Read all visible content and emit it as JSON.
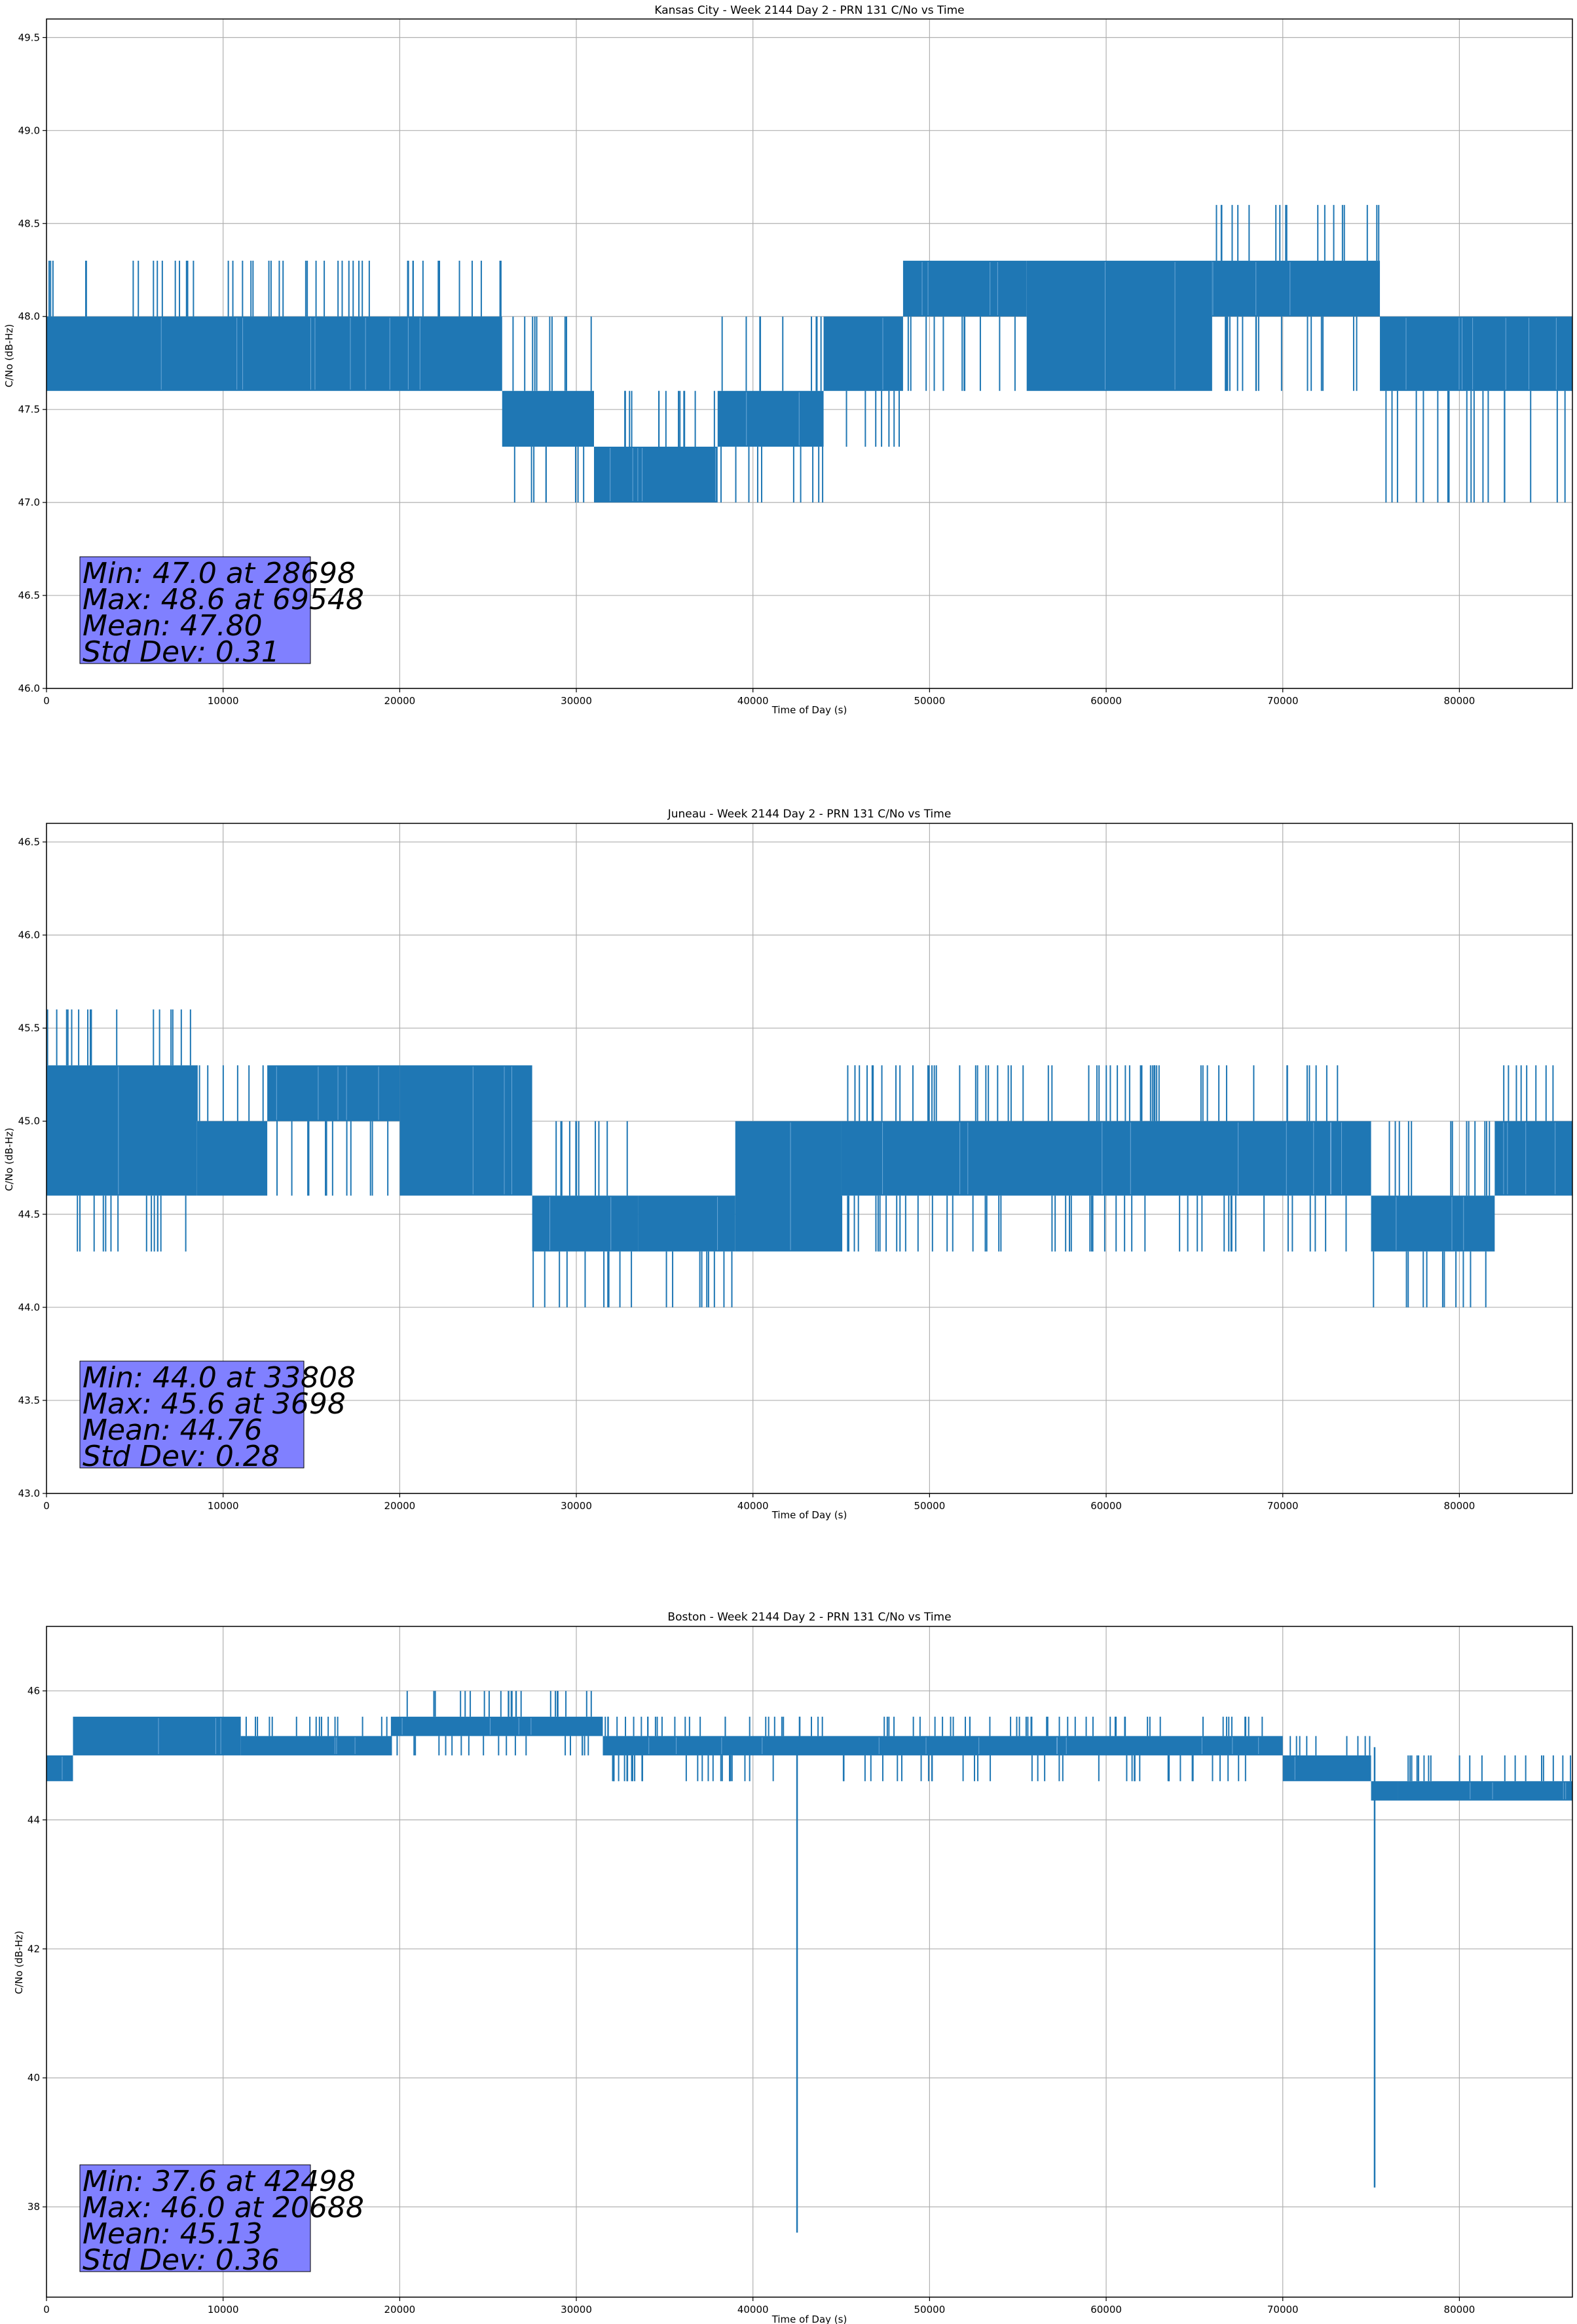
{
  "colors": {
    "line": "#1f77b4",
    "grid": "#b0b0b0",
    "stats_box": "#8080ff",
    "axes": "#000000"
  },
  "chart_data": [
    {
      "type": "line",
      "title": "Kansas City - Week 2144 Day 2 - PRN 131 C/No vs Time",
      "xlabel": "Time of Day (s)",
      "ylabel": "C/No (dB-Hz)",
      "xlim": [
        0,
        86400
      ],
      "ylim": [
        46.0,
        49.6
      ],
      "xticks": [
        0,
        10000,
        20000,
        30000,
        40000,
        50000,
        60000,
        70000,
        80000
      ],
      "yticks": [
        46.0,
        46.5,
        47.0,
        47.5,
        48.0,
        48.5,
        49.0,
        49.5
      ],
      "ytick_decimals": 1,
      "grid": true,
      "series": [
        {
          "name": "C/No",
          "segments": [
            {
              "x": [
                0,
                25800
              ],
              "band": [
                47.6,
                48.0
              ],
              "spikes_high": 48.3,
              "spikes_low": 47.6
            },
            {
              "x": [
                25800,
                31000
              ],
              "band": [
                47.3,
                47.6
              ],
              "spikes_high": 48.0,
              "spikes_low": 47.0
            },
            {
              "x": [
                31000,
                38000
              ],
              "band": [
                47.0,
                47.3
              ],
              "spikes_high": 47.6,
              "spikes_low": 47.0
            },
            {
              "x": [
                38000,
                44000
              ],
              "band": [
                47.3,
                47.6
              ],
              "spikes_high": 48.0,
              "spikes_low": 47.0
            },
            {
              "x": [
                44000,
                48500
              ],
              "band": [
                47.6,
                48.0
              ],
              "spikes_high": 48.0,
              "spikes_low": 47.3
            },
            {
              "x": [
                48500,
                55500
              ],
              "band": [
                48.0,
                48.3
              ],
              "spikes_high": 48.3,
              "spikes_low": 47.6
            },
            {
              "x": [
                55500,
                66000
              ],
              "band": [
                47.6,
                48.3
              ],
              "spikes_high": 48.3,
              "spikes_low": 47.6
            },
            {
              "x": [
                66000,
                75500
              ],
              "band": [
                48.0,
                48.3
              ],
              "spikes_high": 48.6,
              "spikes_low": 47.6
            },
            {
              "x": [
                75500,
                86400
              ],
              "band": [
                47.6,
                48.0
              ],
              "spikes_high": 48.0,
              "spikes_low": 47.0
            }
          ]
        }
      ],
      "stats": [
        "Min: 47.0 at 28698",
        "Max: 48.6 at 69548",
        "Mean: 47.80",
        "Std Dev: 0.31"
      ]
    },
    {
      "type": "line",
      "title": "Juneau - Week 2144 Day 2 - PRN 131 C/No vs Time",
      "xlabel": "Time of Day (s)",
      "ylabel": "C/No (dB-Hz)",
      "xlim": [
        0,
        86400
      ],
      "ylim": [
        43.0,
        46.6
      ],
      "xticks": [
        0,
        10000,
        20000,
        30000,
        40000,
        50000,
        60000,
        70000,
        80000
      ],
      "yticks": [
        43.0,
        43.5,
        44.0,
        44.5,
        45.0,
        45.5,
        46.0,
        46.5
      ],
      "ytick_decimals": 1,
      "grid": true,
      "series": [
        {
          "name": "C/No",
          "segments": [
            {
              "x": [
                0,
                8500
              ],
              "band": [
                44.6,
                45.3
              ],
              "spikes_high": 45.6,
              "spikes_low": 44.3
            },
            {
              "x": [
                8500,
                12500
              ],
              "band": [
                44.6,
                45.0
              ],
              "spikes_high": 45.3,
              "spikes_low": 44.6
            },
            {
              "x": [
                12500,
                20000
              ],
              "band": [
                45.0,
                45.3
              ],
              "spikes_high": 45.3,
              "spikes_low": 44.6
            },
            {
              "x": [
                20000,
                27500
              ],
              "band": [
                44.6,
                45.3
              ],
              "spikes_high": 45.3,
              "spikes_low": 44.6
            },
            {
              "x": [
                27500,
                33500
              ],
              "band": [
                44.3,
                44.6
              ],
              "spikes_high": 45.0,
              "spikes_low": 44.0
            },
            {
              "x": [
                33500,
                39000
              ],
              "band": [
                44.3,
                44.6
              ],
              "spikes_high": 44.6,
              "spikes_low": 44.0
            },
            {
              "x": [
                39000,
                45000
              ],
              "band": [
                44.3,
                45.0
              ],
              "spikes_high": 45.0,
              "spikes_low": 44.3
            },
            {
              "x": [
                45000,
                75000
              ],
              "band": [
                44.6,
                45.0
              ],
              "spikes_high": 45.3,
              "spikes_low": 44.3
            },
            {
              "x": [
                75000,
                82000
              ],
              "band": [
                44.3,
                44.6
              ],
              "spikes_high": 45.0,
              "spikes_low": 44.0
            },
            {
              "x": [
                82000,
                86400
              ],
              "band": [
                44.6,
                45.0
              ],
              "spikes_high": 45.3,
              "spikes_low": 44.6
            }
          ]
        }
      ],
      "stats": [
        "Min: 44.0 at 33808",
        "Max: 45.6 at 3698",
        "Mean: 44.76",
        "Std Dev: 0.28"
      ]
    },
    {
      "type": "line",
      "title": "Boston - Week 2144 Day 2 - PRN 131 C/No vs Time",
      "xlabel": "Time of Day (s)",
      "ylabel": "C/No (dB-Hz)",
      "xlim": [
        0,
        86400
      ],
      "ylim": [
        36.6,
        47.0
      ],
      "xticks": [
        0,
        10000,
        20000,
        30000,
        40000,
        50000,
        60000,
        70000,
        80000
      ],
      "yticks": [
        38,
        40,
        42,
        44,
        46
      ],
      "ytick_decimals": 0,
      "grid": true,
      "series": [
        {
          "name": "C/No",
          "segments": [
            {
              "x": [
                0,
                1500
              ],
              "band": [
                44.6,
                45.0
              ],
              "spikes_high": 45.0,
              "spikes_low": 44.6
            },
            {
              "x": [
                1500,
                11000
              ],
              "band": [
                45.0,
                45.6
              ],
              "spikes_high": 45.6,
              "spikes_low": 45.0
            },
            {
              "x": [
                11000,
                19500
              ],
              "band": [
                45.0,
                45.3
              ],
              "spikes_high": 45.6,
              "spikes_low": 45.0
            },
            {
              "x": [
                19500,
                31500
              ],
              "band": [
                45.3,
                45.6
              ],
              "spikes_high": 46.0,
              "spikes_low": 45.0
            },
            {
              "x": [
                31500,
                70000
              ],
              "band": [
                45.0,
                45.3
              ],
              "spikes_high": 45.6,
              "spikes_low": 44.6
            },
            {
              "x": [
                70000,
                75000
              ],
              "band": [
                44.6,
                45.0
              ],
              "spikes_high": 45.3,
              "spikes_low": 44.6
            },
            {
              "x": [
                75000,
                76500
              ],
              "band": [
                44.3,
                44.6
              ],
              "spikes_high": 44.6,
              "spikes_low": 44.3
            },
            {
              "x": [
                76500,
                86400
              ],
              "band": [
                44.3,
                44.6
              ],
              "spikes_high": 45.0,
              "spikes_low": 44.3
            }
          ],
          "dips": [
            {
              "x": 42498,
              "y": 37.6
            },
            {
              "x": 75200,
              "y": 38.3
            }
          ]
        }
      ],
      "stats": [
        "Min: 37.6 at 42498",
        "Max: 46.0 at 20688",
        "Mean: 45.13",
        "Std Dev: 0.36"
      ]
    }
  ]
}
